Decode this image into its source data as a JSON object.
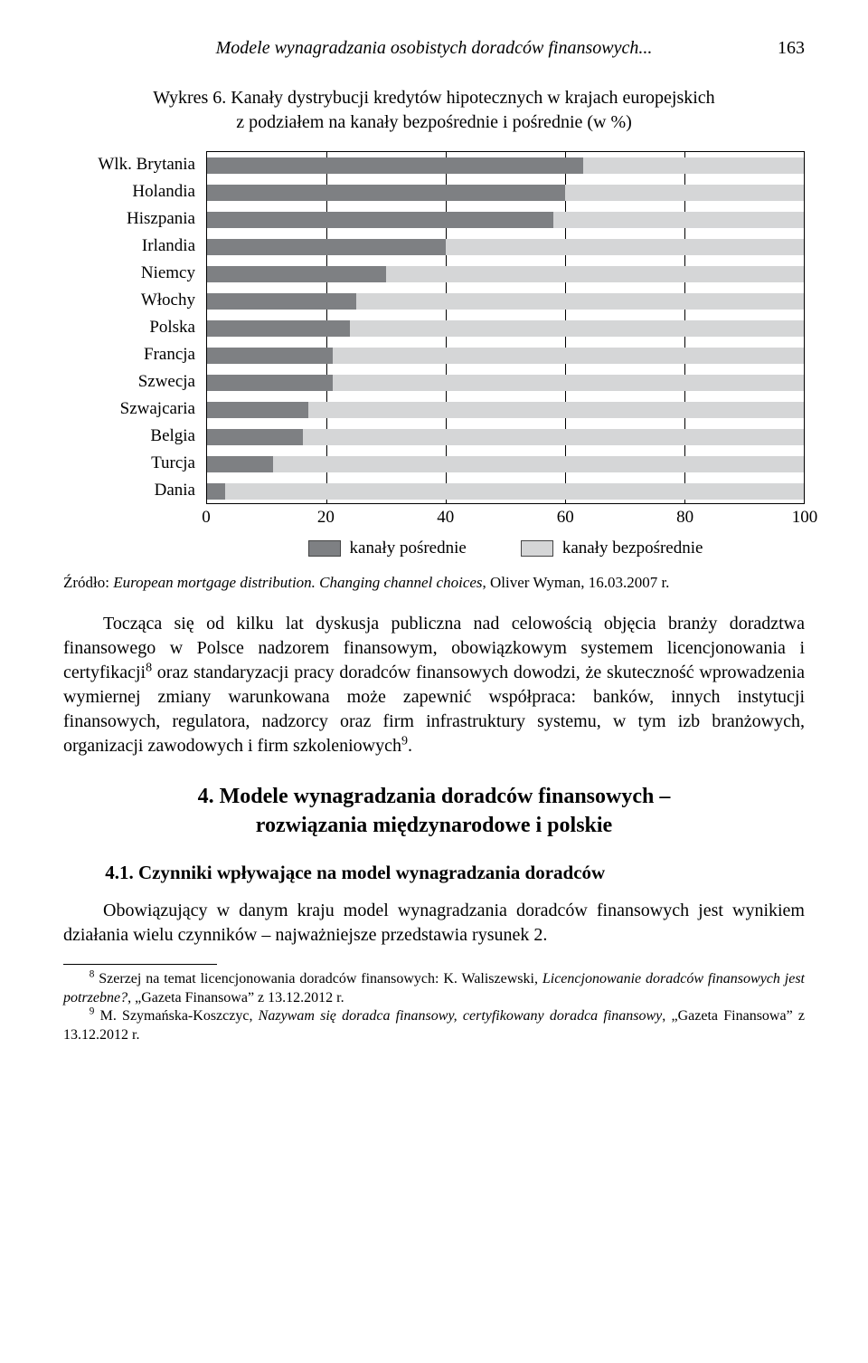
{
  "header": {
    "running_title": "Modele wynagradzania osobistych doradców finansowych...",
    "page_number": "163"
  },
  "chart": {
    "type": "bar-stacked-horizontal",
    "caption_line1": "Wykres 6. Kanały dystrybucji kredytów hipotecznych w krajach europejskich",
    "caption_line2": "z podziałem na kanały bezpośrednie i pośrednie (w %)",
    "x": {
      "min": 0,
      "max": 100,
      "ticks": [
        0,
        20,
        40,
        60,
        80,
        100
      ]
    },
    "colors": {
      "indirect": "#7e8083",
      "direct": "#d5d6d7",
      "grid": "#000000",
      "background": "#ffffff"
    },
    "series_labels": {
      "indirect": "kanały pośrednie",
      "direct": "kanały bezpośrednie"
    },
    "categories": [
      {
        "label": "Wlk. Brytania",
        "indirect": 63,
        "direct": 37
      },
      {
        "label": "Holandia",
        "indirect": 60,
        "direct": 40
      },
      {
        "label": "Hiszpania",
        "indirect": 58,
        "direct": 42
      },
      {
        "label": "Irlandia",
        "indirect": 40,
        "direct": 60
      },
      {
        "label": "Niemcy",
        "indirect": 30,
        "direct": 70
      },
      {
        "label": "Włochy",
        "indirect": 25,
        "direct": 75
      },
      {
        "label": "Polska",
        "indirect": 24,
        "direct": 76
      },
      {
        "label": "Francja",
        "indirect": 21,
        "direct": 79
      },
      {
        "label": "Szwecja",
        "indirect": 21,
        "direct": 79
      },
      {
        "label": "Szwajcaria",
        "indirect": 17,
        "direct": 83
      },
      {
        "label": "Belgia",
        "indirect": 16,
        "direct": 84
      },
      {
        "label": "Turcja",
        "indirect": 11,
        "direct": 89
      },
      {
        "label": "Dania",
        "indirect": 3,
        "direct": 97
      }
    ]
  },
  "source": {
    "prefix": "Źródło: ",
    "title_italic": "European mortgage distribution. Changing channel choices",
    "suffix": ", Oliver Wyman, 16.03.2007 r."
  },
  "para": {
    "p1": "Tocząca się od kilku lat dyskusja publiczna nad celowością objęcia branży doradztwa finansowego w Polsce nadzorem finansowym, obowiązkowym systemem licencjonowania i certyfikacji",
    "p1_sup": "8",
    "p1b": " oraz standaryzacji pracy doradców finansowych dowodzi, że skuteczność wprowadzenia wymiernej zmiany warunkowana może zapewnić współpraca: banków, innych instytucji finansowych, regulatora, nadzorcy oraz firm infrastruktury systemu, w tym izb branżowych, organizacji zawodowych i firm szkoleniowych",
    "p1_sup2": "9",
    "p1c": "."
  },
  "section": {
    "num_title_l1": "4. Modele wynagradzania doradców finansowych –",
    "num_title_l2": "rozwiązania międzynarodowe i polskie",
    "subsection": "4.1. Czynniki wpływające na model wynagradzania doradców"
  },
  "para2": {
    "text": "Obowiązujący w danym kraju model wynagradzania doradców finansowych jest wynikiem działania wielu czynników – najważniejsze przedstawia rysunek 2."
  },
  "footnotes": {
    "f8_sup": "8",
    "f8_a": " Szerzej na temat licencjonowania doradców finansowych: K. Waliszewski, ",
    "f8_it": "Licencjonowanie doradców finansowych jest potrzebne?",
    "f8_b": ", „Gazeta Finansowa” z 13.12.2012 r.",
    "f9_sup": "9",
    "f9_a": " M. Szymańska-Koszczyc, ",
    "f9_it": "Nazywam się doradca finansowy, certyfikowany doradca finansowy",
    "f9_b": ", „Gazeta Finansowa” z 13.12.2012 r."
  }
}
